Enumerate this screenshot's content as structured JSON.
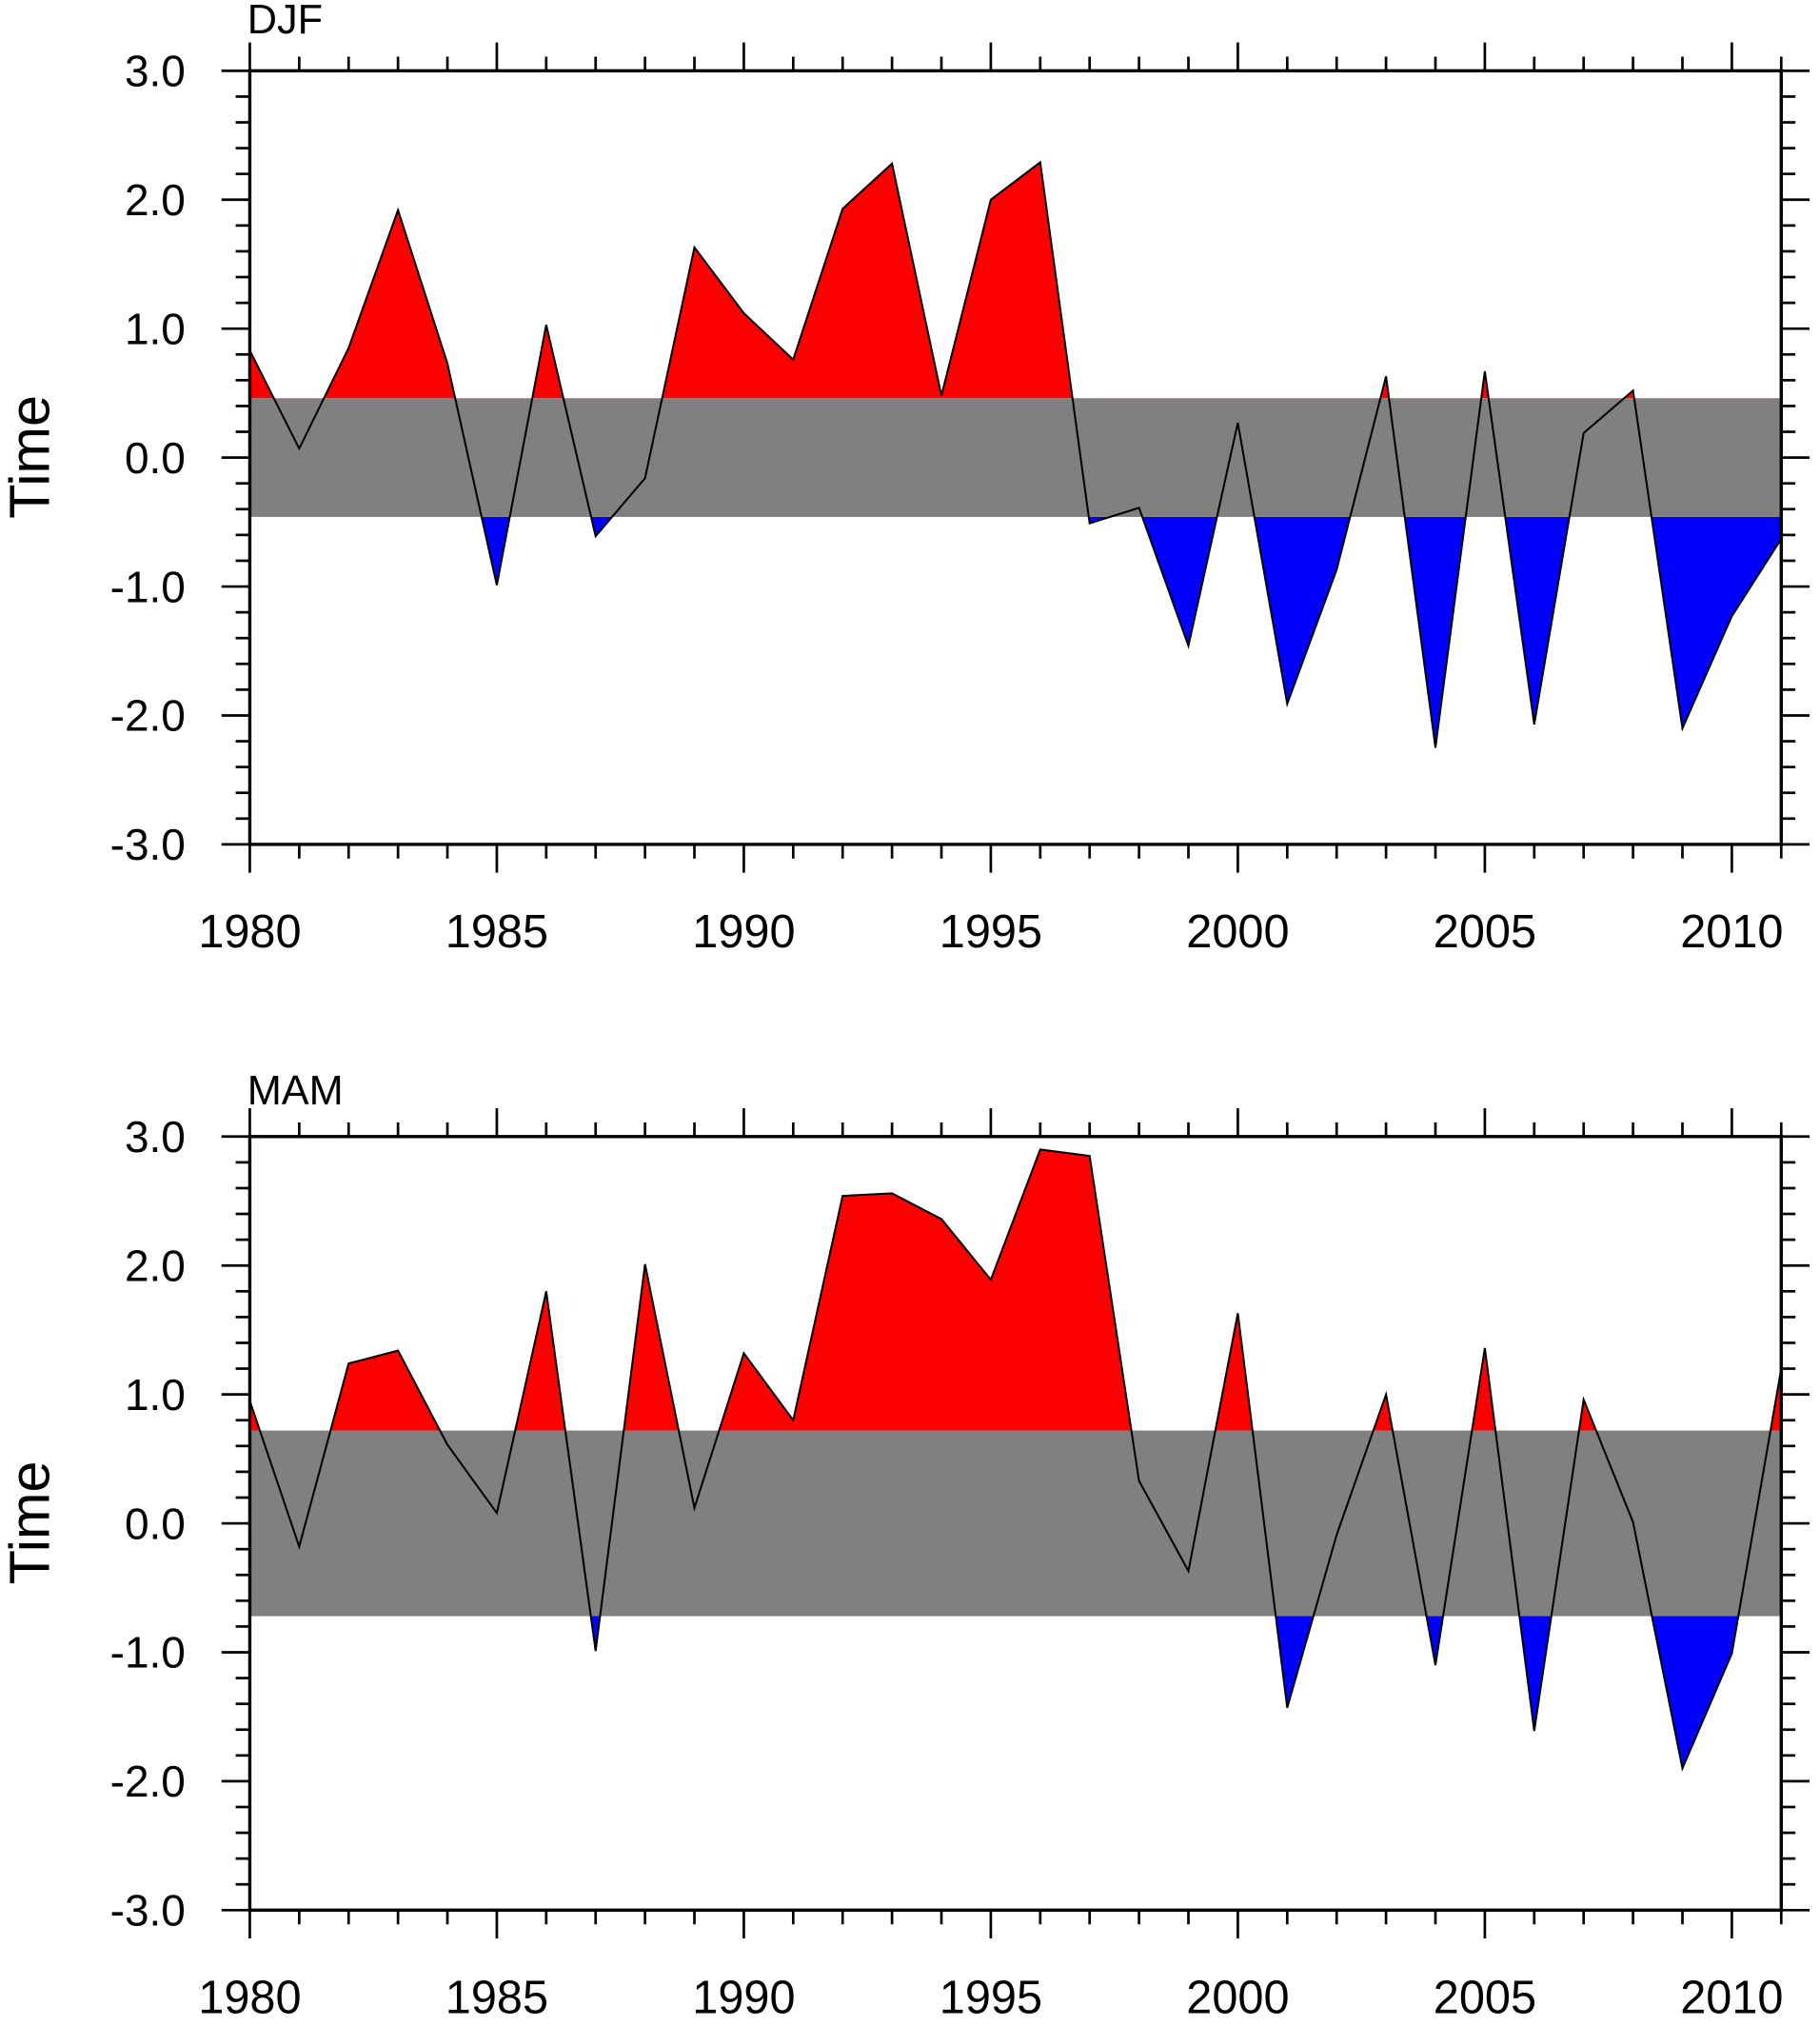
{
  "chart_data": [
    {
      "type": "area",
      "title": "DJF",
      "xlabel": "",
      "ylabel": "Time",
      "xlim": [
        1980,
        2011
      ],
      "ylim": [
        -3.0,
        3.0
      ],
      "xticks": [
        "1980",
        "1985",
        "1990",
        "1995",
        "2000",
        "2005",
        "2010"
      ],
      "yticks": [
        "3.0",
        "2.0",
        "1.0",
        "0.0",
        "-1.0",
        "-2.0",
        "-3.0"
      ],
      "band": [
        -0.46,
        0.46
      ],
      "colors": {
        "above": "#ff0000",
        "below": "#0000ff",
        "band": "#808080",
        "line": "#000000"
      },
      "x": [
        1980,
        1981,
        1982,
        1983,
        1984,
        1985,
        1986,
        1987,
        1988,
        1989,
        1990,
        1991,
        1992,
        1993,
        1994,
        1995,
        1996,
        1997,
        1998,
        1999,
        2000,
        2001,
        2002,
        2003,
        2004,
        2005,
        2006,
        2007,
        2008,
        2009,
        2010,
        2011
      ],
      "values": [
        0.83,
        0.07,
        0.85,
        1.92,
        0.73,
        -0.99,
        1.03,
        -0.61,
        -0.16,
        1.63,
        1.12,
        0.76,
        1.93,
        2.28,
        0.48,
        2.0,
        2.29,
        -0.51,
        -0.39,
        -1.46,
        0.27,
        -1.91,
        -0.87,
        0.63,
        -2.25,
        0.67,
        -2.07,
        0.19,
        0.52,
        -2.1,
        -1.23,
        -0.63
      ]
    },
    {
      "type": "area",
      "title": "MAM",
      "xlabel": "",
      "ylabel": "Time",
      "xlim": [
        1980,
        2011
      ],
      "ylim": [
        -3.0,
        3.0
      ],
      "xticks": [
        "1980",
        "1985",
        "1990",
        "1995",
        "2000",
        "2005",
        "2010"
      ],
      "yticks": [
        "3.0",
        "2.0",
        "1.0",
        "0.0",
        "-1.0",
        "-2.0",
        "-3.0"
      ],
      "band": [
        -0.72,
        0.72
      ],
      "colors": {
        "above": "#ff0000",
        "below": "#0000ff",
        "band": "#808080",
        "line": "#000000"
      },
      "x": [
        1980,
        1981,
        1982,
        1983,
        1984,
        1985,
        1986,
        1987,
        1988,
        1989,
        1990,
        1991,
        1992,
        1993,
        1994,
        1995,
        1996,
        1997,
        1998,
        1999,
        2000,
        2001,
        2002,
        2003,
        2004,
        2005,
        2006,
        2007,
        2008,
        2009,
        2010,
        2011
      ],
      "values": [
        0.95,
        -0.18,
        1.24,
        1.34,
        0.61,
        0.08,
        1.8,
        -0.99,
        2.01,
        0.12,
        1.32,
        0.8,
        2.54,
        2.56,
        2.36,
        1.89,
        2.9,
        2.85,
        0.33,
        -0.37,
        1.63,
        -1.43,
        -0.09,
        1.0,
        -1.1,
        1.36,
        -1.61,
        0.96,
        0.01,
        -1.9,
        -1.01,
        1.2
      ]
    }
  ]
}
